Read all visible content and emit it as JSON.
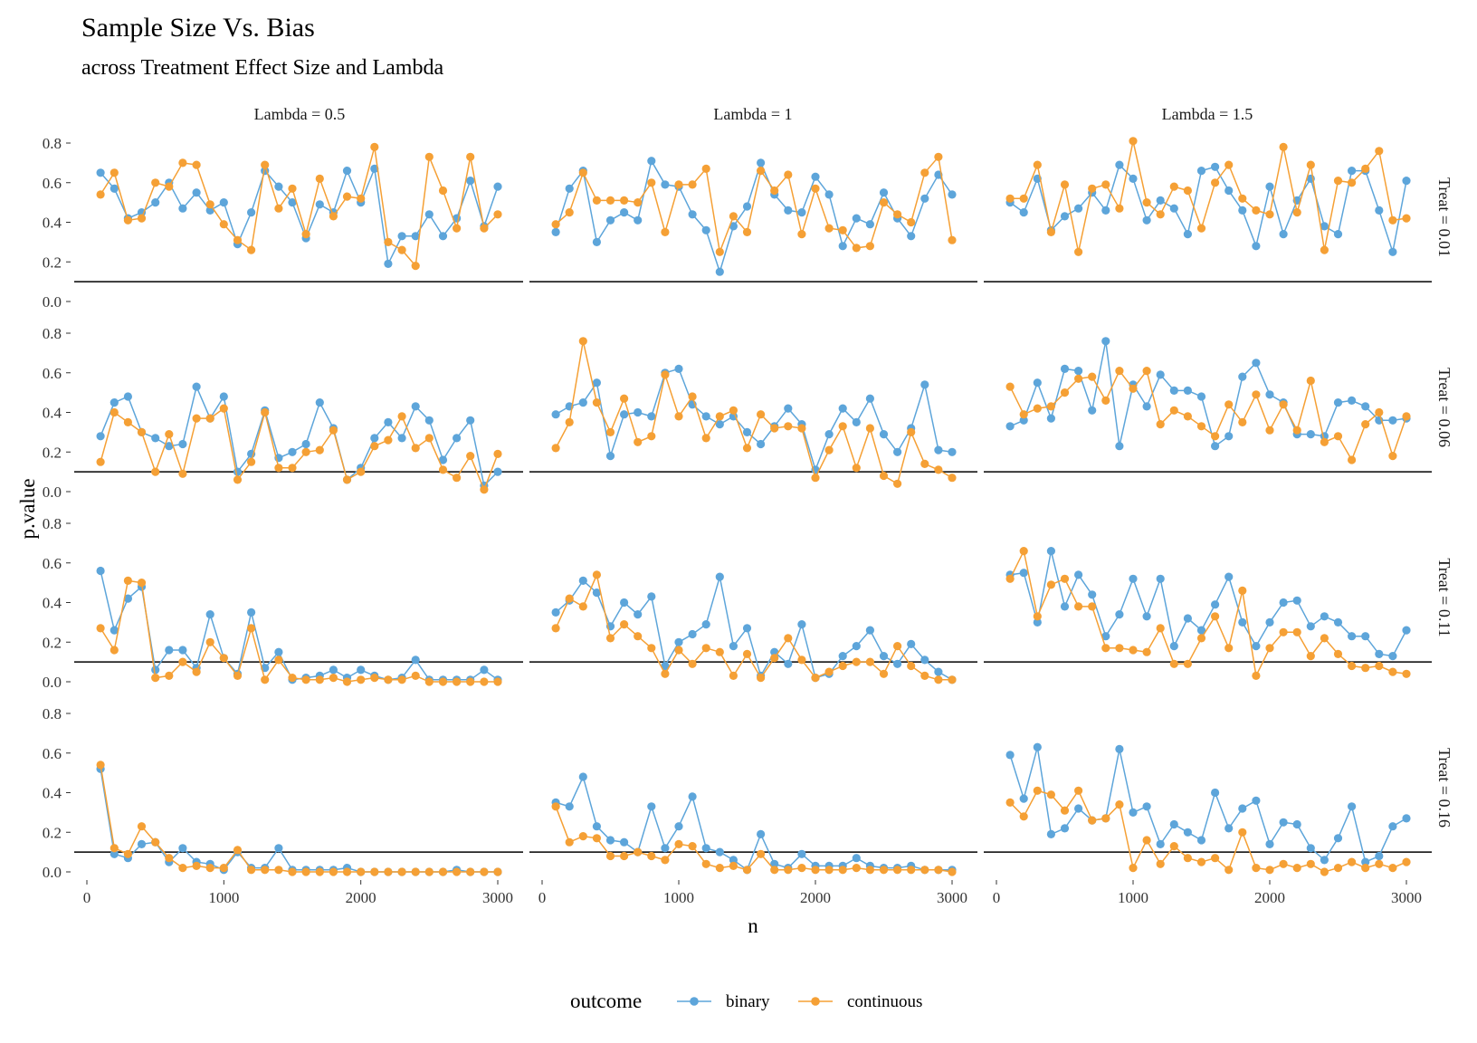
{
  "chart_data": {
    "type": "line",
    "title": "Sample Size Vs. Bias",
    "subtitle": "across Treatment Effect Size and Lambda",
    "xlabel": "n",
    "ylabel": "p.value",
    "xlim": [
      0,
      3000
    ],
    "ylim": [
      0,
      0.8
    ],
    "x_ticks": [
      0,
      1000,
      2000,
      3000
    ],
    "y_ticks": [
      0.0,
      0.2,
      0.4,
      0.6,
      0.8
    ],
    "x_tick_labels": [
      "0",
      "1000",
      "2000",
      "3000"
    ],
    "y_tick_labels": [
      "0.0",
      "0.2",
      "0.4",
      "0.6",
      "0.8"
    ],
    "reference_line": 0.1,
    "grid": false,
    "legend": {
      "title": "outcome",
      "position": "bottom",
      "entries": [
        "binary",
        "continuous"
      ]
    },
    "colors": {
      "binary": "#5da5da",
      "continuous": "#f5a035"
    },
    "facet_cols": [
      "Lambda = 0.5",
      "Lambda = 1",
      "Lambda = 1.5"
    ],
    "facet_rows": [
      "Treat = 0.01",
      "Treat = 0.06",
      "Treat = 0.11",
      "Treat = 0.16"
    ],
    "x": [
      100,
      200,
      300,
      400,
      500,
      600,
      700,
      800,
      900,
      1000,
      1100,
      1200,
      1300,
      1400,
      1500,
      1600,
      1700,
      1800,
      1900,
      2000,
      2100,
      2200,
      2300,
      2400,
      2500,
      2600,
      2700,
      2800,
      2900,
      3000
    ],
    "panels": [
      [
        {
          "binary": [
            0.65,
            0.57,
            0.42,
            0.45,
            0.5,
            0.6,
            0.47,
            0.55,
            0.46,
            0.5,
            0.29,
            0.45,
            0.66,
            0.58,
            0.5,
            0.32,
            0.49,
            0.45,
            0.66,
            0.5,
            0.67,
            0.19,
            0.33,
            0.33,
            0.44,
            0.33,
            0.42,
            0.61,
            0.38,
            0.58
          ],
          "continuous": [
            0.54,
            0.65,
            0.41,
            0.42,
            0.6,
            0.58,
            0.7,
            0.69,
            0.49,
            0.39,
            0.31,
            0.26,
            0.69,
            0.47,
            0.57,
            0.34,
            0.62,
            0.43,
            0.53,
            0.52,
            0.78,
            0.3,
            0.26,
            0.18,
            0.73,
            0.56,
            0.37,
            0.73,
            0.37,
            0.44
          ]
        },
        {
          "binary": [
            0.35,
            0.57,
            0.66,
            0.3,
            0.41,
            0.45,
            0.41,
            0.71,
            0.59,
            0.58,
            0.44,
            0.36,
            0.15,
            0.38,
            0.48,
            0.7,
            0.54,
            0.46,
            0.45,
            0.63,
            0.54,
            0.28,
            0.42,
            0.39,
            0.55,
            0.42,
            0.33,
            0.52,
            0.64,
            0.54
          ],
          "continuous": [
            0.39,
            0.45,
            0.65,
            0.51,
            0.51,
            0.51,
            0.5,
            0.6,
            0.35,
            0.59,
            0.59,
            0.67,
            0.25,
            0.43,
            0.35,
            0.66,
            0.56,
            0.64,
            0.34,
            0.57,
            0.37,
            0.36,
            0.27,
            0.28,
            0.5,
            0.44,
            0.4,
            0.65,
            0.73,
            0.31
          ]
        },
        {
          "binary": [
            0.5,
            0.45,
            0.62,
            0.36,
            0.43,
            0.47,
            0.55,
            0.46,
            0.69,
            0.62,
            0.41,
            0.51,
            0.47,
            0.34,
            0.66,
            0.68,
            0.56,
            0.46,
            0.28,
            0.58,
            0.34,
            0.51,
            0.62,
            0.38,
            0.34,
            0.66,
            0.66,
            0.46,
            0.25,
            0.61
          ],
          "continuous": [
            0.52,
            0.52,
            0.69,
            0.35,
            0.59,
            0.25,
            0.57,
            0.59,
            0.47,
            0.81,
            0.5,
            0.44,
            0.58,
            0.56,
            0.37,
            0.6,
            0.69,
            0.52,
            0.46,
            0.44,
            0.78,
            0.45,
            0.69,
            0.26,
            0.61,
            0.6,
            0.67,
            0.76,
            0.41,
            0.42
          ]
        }
      ],
      [
        {
          "binary": [
            0.28,
            0.45,
            0.48,
            0.3,
            0.27,
            0.23,
            0.24,
            0.53,
            0.37,
            0.48,
            0.1,
            0.19,
            0.41,
            0.17,
            0.2,
            0.24,
            0.45,
            0.32,
            0.06,
            0.12,
            0.27,
            0.35,
            0.27,
            0.43,
            0.36,
            0.16,
            0.27,
            0.36,
            0.03,
            0.1
          ],
          "continuous": [
            0.15,
            0.4,
            0.35,
            0.3,
            0.1,
            0.29,
            0.09,
            0.37,
            0.37,
            0.42,
            0.06,
            0.15,
            0.4,
            0.12,
            0.12,
            0.2,
            0.21,
            0.31,
            0.06,
            0.1,
            0.23,
            0.26,
            0.38,
            0.22,
            0.27,
            0.11,
            0.07,
            0.18,
            0.01,
            0.19
          ]
        },
        {
          "binary": [
            0.39,
            0.43,
            0.45,
            0.55,
            0.18,
            0.39,
            0.4,
            0.38,
            0.6,
            0.62,
            0.44,
            0.38,
            0.34,
            0.38,
            0.3,
            0.24,
            0.33,
            0.42,
            0.34,
            0.11,
            0.29,
            0.42,
            0.35,
            0.47,
            0.29,
            0.2,
            0.32,
            0.54,
            0.21,
            0.2
          ],
          "continuous": [
            0.22,
            0.35,
            0.76,
            0.45,
            0.3,
            0.47,
            0.25,
            0.28,
            0.59,
            0.38,
            0.48,
            0.27,
            0.38,
            0.41,
            0.22,
            0.39,
            0.32,
            0.33,
            0.32,
            0.07,
            0.21,
            0.33,
            0.12,
            0.32,
            0.08,
            0.04,
            0.3,
            0.14,
            0.11,
            0.07
          ]
        },
        {
          "binary": [
            0.33,
            0.36,
            0.55,
            0.37,
            0.62,
            0.61,
            0.41,
            0.76,
            0.23,
            0.54,
            0.43,
            0.59,
            0.51,
            0.51,
            0.48,
            0.23,
            0.28,
            0.58,
            0.65,
            0.49,
            0.45,
            0.29,
            0.29,
            0.28,
            0.45,
            0.46,
            0.43,
            0.36,
            0.36,
            0.37
          ],
          "continuous": [
            0.53,
            0.39,
            0.42,
            0.43,
            0.5,
            0.57,
            0.58,
            0.46,
            0.61,
            0.52,
            0.61,
            0.34,
            0.41,
            0.38,
            0.33,
            0.28,
            0.44,
            0.35,
            0.49,
            0.31,
            0.44,
            0.31,
            0.56,
            0.25,
            0.28,
            0.16,
            0.34,
            0.4,
            0.18,
            0.38
          ]
        }
      ],
      [
        {
          "binary": [
            0.56,
            0.26,
            0.42,
            0.48,
            0.06,
            0.16,
            0.16,
            0.07,
            0.34,
            0.12,
            0.04,
            0.35,
            0.07,
            0.15,
            0.01,
            0.02,
            0.03,
            0.06,
            0.02,
            0.06,
            0.03,
            0.01,
            0.02,
            0.11,
            0.01,
            0.01,
            0.01,
            0.01,
            0.06,
            0.01
          ],
          "continuous": [
            0.27,
            0.16,
            0.51,
            0.5,
            0.02,
            0.03,
            0.1,
            0.05,
            0.2,
            0.12,
            0.03,
            0.27,
            0.01,
            0.11,
            0.02,
            0.01,
            0.01,
            0.02,
            0.0,
            0.01,
            0.02,
            0.01,
            0.01,
            0.03,
            0.0,
            0.0,
            0.0,
            0.0,
            0.0,
            0.0
          ]
        },
        {
          "binary": [
            0.35,
            0.41,
            0.51,
            0.45,
            0.28,
            0.4,
            0.34,
            0.43,
            0.08,
            0.2,
            0.24,
            0.29,
            0.53,
            0.18,
            0.27,
            0.03,
            0.15,
            0.09,
            0.29,
            0.02,
            0.04,
            0.13,
            0.18,
            0.26,
            0.13,
            0.09,
            0.19,
            0.11,
            0.05,
            0.01
          ],
          "continuous": [
            0.27,
            0.42,
            0.38,
            0.54,
            0.22,
            0.29,
            0.23,
            0.17,
            0.04,
            0.16,
            0.09,
            0.17,
            0.15,
            0.03,
            0.14,
            0.02,
            0.12,
            0.22,
            0.11,
            0.02,
            0.05,
            0.08,
            0.1,
            0.1,
            0.04,
            0.18,
            0.08,
            0.03,
            0.01,
            0.01
          ]
        },
        {
          "binary": [
            0.54,
            0.55,
            0.3,
            0.66,
            0.38,
            0.54,
            0.44,
            0.23,
            0.34,
            0.52,
            0.33,
            0.52,
            0.18,
            0.32,
            0.26,
            0.39,
            0.53,
            0.3,
            0.18,
            0.3,
            0.4,
            0.41,
            0.28,
            0.33,
            0.3,
            0.23,
            0.23,
            0.14,
            0.13,
            0.26
          ],
          "continuous": [
            0.52,
            0.66,
            0.33,
            0.49,
            0.52,
            0.38,
            0.38,
            0.17,
            0.17,
            0.16,
            0.15,
            0.27,
            0.09,
            0.09,
            0.22,
            0.33,
            0.17,
            0.46,
            0.03,
            0.17,
            0.25,
            0.25,
            0.13,
            0.22,
            0.14,
            0.08,
            0.07,
            0.08,
            0.05,
            0.04
          ]
        }
      ],
      [
        {
          "binary": [
            0.52,
            0.09,
            0.07,
            0.14,
            0.15,
            0.05,
            0.12,
            0.05,
            0.04,
            0.01,
            0.1,
            0.02,
            0.02,
            0.12,
            0.01,
            0.01,
            0.01,
            0.01,
            0.02,
            0.0,
            0.0,
            0.0,
            0.0,
            0.0,
            0.0,
            0.0,
            0.01,
            0.0,
            0.0,
            0.0
          ],
          "continuous": [
            0.54,
            0.12,
            0.09,
            0.23,
            0.15,
            0.07,
            0.02,
            0.03,
            0.02,
            0.02,
            0.11,
            0.01,
            0.01,
            0.01,
            0.0,
            0.0,
            0.0,
            0.0,
            0.0,
            0.0,
            0.0,
            0.0,
            0.0,
            0.0,
            0.0,
            0.0,
            0.0,
            0.0,
            0.0,
            0.0
          ]
        },
        {
          "binary": [
            0.35,
            0.33,
            0.48,
            0.23,
            0.16,
            0.15,
            0.1,
            0.33,
            0.12,
            0.23,
            0.38,
            0.12,
            0.1,
            0.06,
            0.01,
            0.19,
            0.04,
            0.02,
            0.09,
            0.03,
            0.03,
            0.03,
            0.07,
            0.03,
            0.02,
            0.02,
            0.03,
            0.01,
            0.01,
            0.01
          ],
          "continuous": [
            0.33,
            0.15,
            0.18,
            0.17,
            0.08,
            0.08,
            0.1,
            0.08,
            0.06,
            0.14,
            0.13,
            0.04,
            0.02,
            0.03,
            0.01,
            0.09,
            0.01,
            0.01,
            0.02,
            0.01,
            0.01,
            0.01,
            0.02,
            0.01,
            0.01,
            0.01,
            0.01,
            0.01,
            0.01,
            0.0
          ]
        },
        {
          "binary": [
            0.59,
            0.37,
            0.63,
            0.19,
            0.22,
            0.32,
            0.26,
            0.27,
            0.62,
            0.3,
            0.33,
            0.14,
            0.24,
            0.2,
            0.16,
            0.4,
            0.22,
            0.32,
            0.36,
            0.14,
            0.25,
            0.24,
            0.12,
            0.06,
            0.17,
            0.33,
            0.05,
            0.08,
            0.23,
            0.27
          ],
          "continuous": [
            0.35,
            0.28,
            0.41,
            0.39,
            0.31,
            0.41,
            0.26,
            0.27,
            0.34,
            0.02,
            0.16,
            0.04,
            0.13,
            0.07,
            0.05,
            0.07,
            0.01,
            0.2,
            0.02,
            0.01,
            0.04,
            0.02,
            0.04,
            0.0,
            0.02,
            0.05,
            0.02,
            0.04,
            0.02,
            0.05
          ]
        }
      ]
    ]
  }
}
